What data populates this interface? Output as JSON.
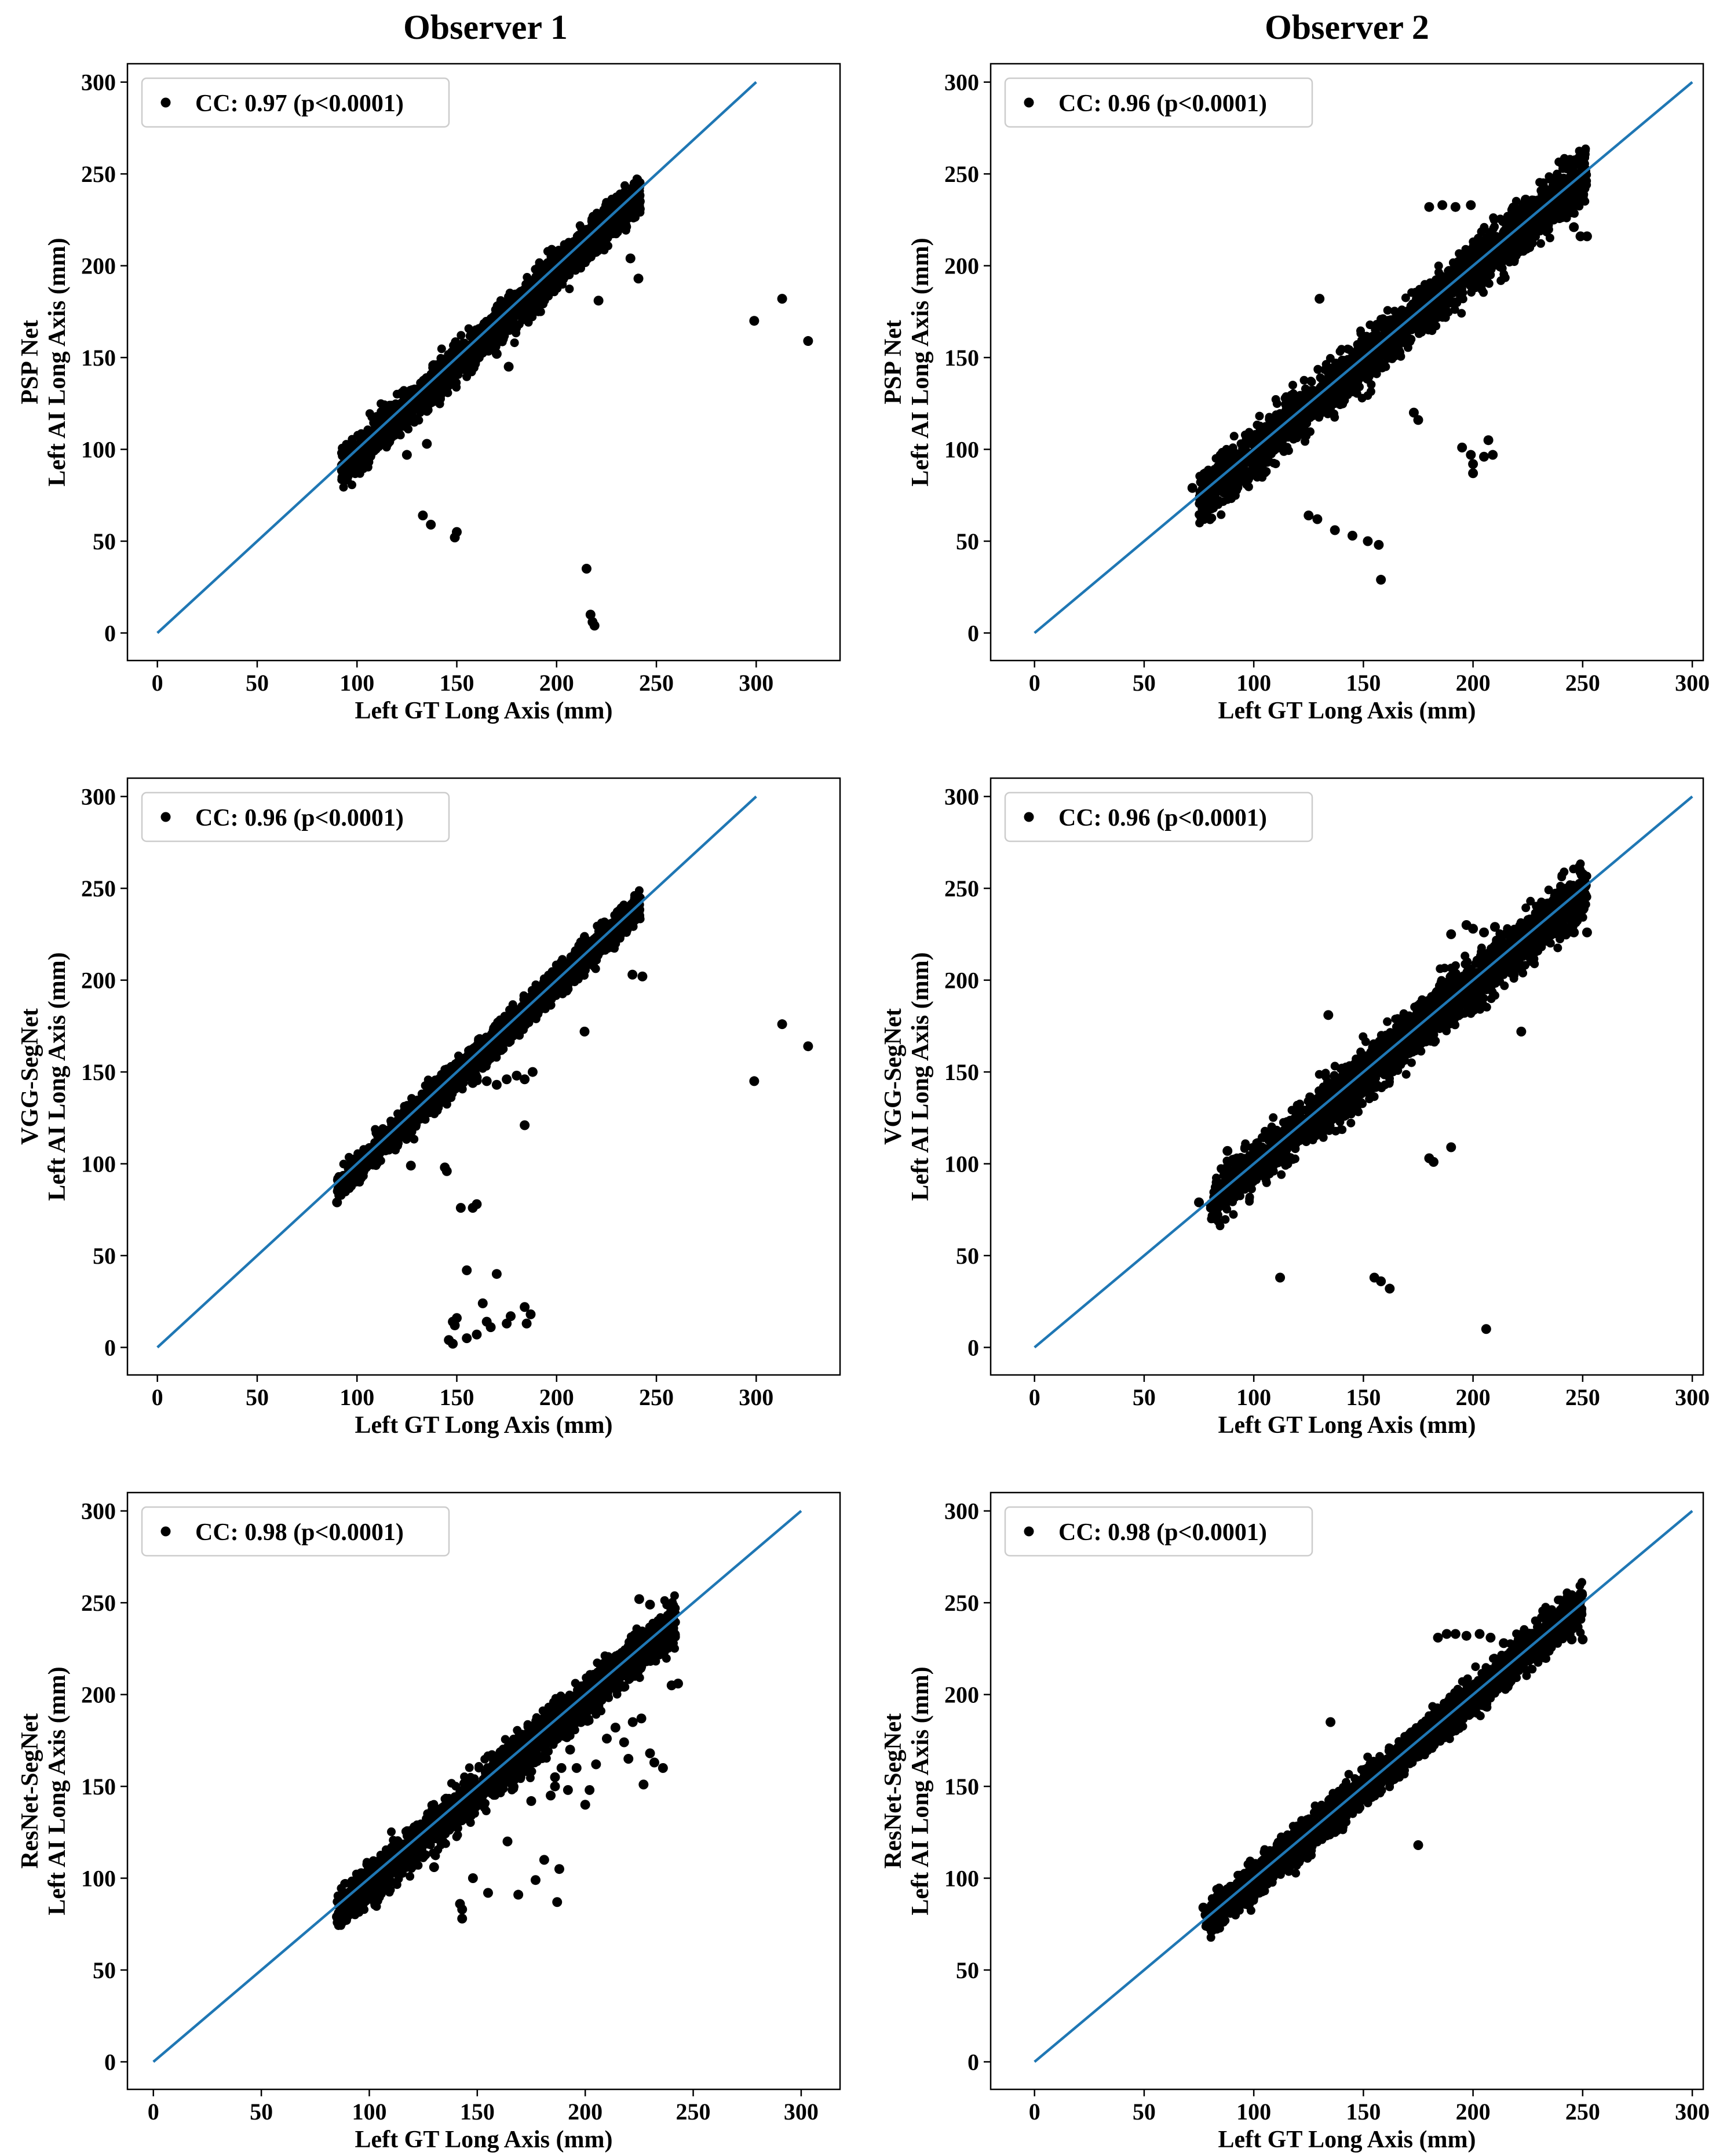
{
  "column_titles": [
    "Observer 1",
    "Observer 2"
  ],
  "colors": {
    "line": "#1f77b4",
    "points": "#000000",
    "axes": "#000000",
    "legend_border": "#cccccc"
  },
  "chart_data": [
    {
      "type": "scatter",
      "panel": "row1-observer1",
      "title": "Observer 1",
      "ylabel_top": "PSP Net",
      "ylabel": "Left AI Long Axis (mm)",
      "xlabel": "Left GT Long Axis (mm)",
      "legend": "CC: 0.97 (p<0.0001)",
      "xlim": [
        -15,
        342
      ],
      "ylim": [
        -15,
        310
      ],
      "xticks": [
        0,
        50,
        100,
        150,
        200,
        250,
        300
      ],
      "yticks": [
        0,
        50,
        100,
        150,
        200,
        250,
        300
      ],
      "identity_line": [
        [
          0,
          0
        ],
        [
          300,
          300
        ]
      ],
      "bulk": {
        "x_range": [
          92,
          242
        ],
        "spread": 9,
        "bias": -3
      },
      "outliers": [
        [
          133,
          64
        ],
        [
          137,
          59
        ],
        [
          149,
          52
        ],
        [
          150,
          55
        ],
        [
          215,
          35
        ],
        [
          217,
          10
        ],
        [
          218,
          6
        ],
        [
          219,
          4
        ],
        [
          237,
          204
        ],
        [
          241,
          193
        ],
        [
          221,
          181
        ],
        [
          299,
          170
        ],
        [
          313,
          182
        ],
        [
          326,
          159
        ],
        [
          135,
          103
        ],
        [
          125,
          97
        ],
        [
          120,
          110
        ],
        [
          170,
          152
        ],
        [
          176,
          145
        ]
      ]
    },
    {
      "type": "scatter",
      "panel": "row1-observer2",
      "title": "Observer 2",
      "ylabel_top": "PSP Net",
      "ylabel": "Left AI Long Axis (mm)",
      "xlabel": "Left GT Long Axis (mm)",
      "legend": "CC: 0.96 (p<0.0001)",
      "xlim": [
        -20,
        305
      ],
      "ylim": [
        -15,
        310
      ],
      "xticks": [
        0,
        50,
        100,
        150,
        200,
        250,
        300
      ],
      "yticks": [
        0,
        50,
        100,
        150,
        200,
        250,
        300
      ],
      "identity_line": [
        [
          0,
          0
        ],
        [
          300,
          300
        ]
      ],
      "bulk": {
        "x_range": [
          75,
          252
        ],
        "spread": 12,
        "bias": -2
      },
      "outliers": [
        [
          72,
          79
        ],
        [
          78,
          87
        ],
        [
          79,
          83
        ],
        [
          125,
          64
        ],
        [
          129,
          62
        ],
        [
          137,
          56
        ],
        [
          145,
          53
        ],
        [
          152,
          50
        ],
        [
          157,
          48
        ],
        [
          158,
          29
        ],
        [
          173,
          120
        ],
        [
          175,
          116
        ],
        [
          195,
          101
        ],
        [
          199,
          97
        ],
        [
          200,
          87
        ],
        [
          200,
          92
        ],
        [
          205,
          96
        ],
        [
          207,
          105
        ],
        [
          209,
          97
        ],
        [
          130,
          182
        ],
        [
          180,
          232
        ],
        [
          186,
          233
        ],
        [
          192,
          232
        ],
        [
          199,
          233
        ],
        [
          246,
          221
        ],
        [
          249,
          216
        ],
        [
          252,
          216
        ],
        [
          224,
          236
        ],
        [
          236,
          236
        ],
        [
          241,
          229
        ]
      ]
    },
    {
      "type": "scatter",
      "panel": "row2-observer1",
      "ylabel_top": "VGG-SegNet",
      "ylabel": "Left AI Long Axis (mm)",
      "xlabel": "Left GT Long Axis (mm)",
      "legend": "CC: 0.96 (p<0.0001)",
      "xlim": [
        -15,
        342
      ],
      "ylim": [
        -15,
        310
      ],
      "xticks": [
        0,
        50,
        100,
        150,
        200,
        250,
        300
      ],
      "yticks": [
        0,
        50,
        100,
        150,
        200,
        250,
        300
      ],
      "identity_line": [
        [
          0,
          0
        ],
        [
          300,
          300
        ]
      ],
      "bulk": {
        "x_range": [
          90,
          242
        ],
        "spread": 7,
        "bias": -2
      },
      "outliers": [
        [
          90,
          79
        ],
        [
          97,
          88
        ],
        [
          127,
          99
        ],
        [
          144,
          98
        ],
        [
          145,
          96
        ],
        [
          152,
          76
        ],
        [
          158,
          76
        ],
        [
          160,
          78
        ],
        [
          155,
          42
        ],
        [
          163,
          24
        ],
        [
          170,
          40
        ],
        [
          165,
          14
        ],
        [
          167,
          11
        ],
        [
          150,
          16
        ],
        [
          148,
          14
        ],
        [
          149,
          12
        ],
        [
          146,
          4
        ],
        [
          148,
          2
        ],
        [
          155,
          5
        ],
        [
          160,
          7
        ],
        [
          175,
          13
        ],
        [
          177,
          17
        ],
        [
          184,
          22
        ],
        [
          185,
          13
        ],
        [
          187,
          18
        ],
        [
          184,
          121
        ],
        [
          160,
          147
        ],
        [
          165,
          145
        ],
        [
          170,
          143
        ],
        [
          175,
          146
        ],
        [
          180,
          148
        ],
        [
          184,
          146
        ],
        [
          158,
          144
        ],
        [
          152,
          145
        ],
        [
          188,
          150
        ],
        [
          214,
          172
        ],
        [
          238,
          203
        ],
        [
          243,
          202
        ],
        [
          299,
          145
        ],
        [
          313,
          176
        ],
        [
          326,
          164
        ]
      ]
    },
    {
      "type": "scatter",
      "panel": "row2-observer2",
      "ylabel_top": "VGG-SegNet",
      "ylabel": "Left AI Long Axis (mm)",
      "xlabel": "Left GT Long Axis (mm)",
      "legend": "CC: 0.96 (p<0.0001)",
      "xlim": [
        -20,
        305
      ],
      "ylim": [
        -15,
        310
      ],
      "xticks": [
        0,
        50,
        100,
        150,
        200,
        250,
        300
      ],
      "yticks": [
        0,
        50,
        100,
        150,
        200,
        250,
        300
      ],
      "identity_line": [
        [
          0,
          0
        ],
        [
          300,
          300
        ]
      ],
      "bulk": {
        "x_range": [
          80,
          252
        ],
        "spread": 12,
        "bias": -2
      },
      "outliers": [
        [
          75,
          79
        ],
        [
          85,
          85
        ],
        [
          88,
          107
        ],
        [
          112,
          38
        ],
        [
          155,
          38
        ],
        [
          158,
          36
        ],
        [
          162,
          32
        ],
        [
          190,
          109
        ],
        [
          180,
          103
        ],
        [
          182,
          101
        ],
        [
          206,
          10
        ],
        [
          134,
          181
        ],
        [
          197,
          230
        ],
        [
          200,
          228
        ],
        [
          205,
          226
        ],
        [
          210,
          229
        ],
        [
          222,
          172
        ],
        [
          240,
          226
        ],
        [
          246,
          226
        ],
        [
          252,
          226
        ],
        [
          210,
          215
        ],
        [
          190,
          225
        ]
      ]
    },
    {
      "type": "scatter",
      "panel": "row3-observer1",
      "ylabel_top": "ResNet-SegNet",
      "ylabel": "Left AI Long Axis (mm)",
      "xlabel": "Left GT Long Axis (mm)",
      "legend": "CC: 0.98 (p<0.0001)",
      "xlim": [
        -12,
        318
      ],
      "ylim": [
        -15,
        310
      ],
      "xticks": [
        0,
        50,
        100,
        150,
        200,
        250,
        300
      ],
      "yticks": [
        0,
        50,
        100,
        150,
        200,
        250,
        300
      ],
      "identity_line": [
        [
          0,
          0
        ],
        [
          300,
          300
        ]
      ],
      "bulk": {
        "x_range": [
          85,
          242
        ],
        "spread": 10,
        "bias": -3
      },
      "outliers": [
        [
          85,
          79
        ],
        [
          90,
          84
        ],
        [
          95,
          88
        ],
        [
          130,
          106
        ],
        [
          142,
          86
        ],
        [
          143,
          83
        ],
        [
          143,
          78
        ],
        [
          148,
          100
        ],
        [
          155,
          92
        ],
        [
          164,
          120
        ],
        [
          169,
          91
        ],
        [
          177,
          99
        ],
        [
          181,
          110
        ],
        [
          187,
          87
        ],
        [
          188,
          105
        ],
        [
          184,
          145
        ],
        [
          186,
          150
        ],
        [
          186,
          155
        ],
        [
          189,
          160
        ],
        [
          192,
          148
        ],
        [
          196,
          160
        ],
        [
          193,
          170
        ],
        [
          200,
          140
        ],
        [
          202,
          148
        ],
        [
          205,
          162
        ],
        [
          210,
          176
        ],
        [
          214,
          182
        ],
        [
          218,
          174
        ],
        [
          222,
          185
        ],
        [
          226,
          187
        ],
        [
          220,
          165
        ],
        [
          230,
          168
        ],
        [
          227,
          151
        ],
        [
          232,
          163
        ],
        [
          236,
          160
        ],
        [
          240,
          205
        ],
        [
          243,
          206
        ],
        [
          225,
          252
        ],
        [
          230,
          249
        ],
        [
          175,
          142
        ],
        [
          170,
          155
        ],
        [
          195,
          190
        ],
        [
          198,
          185
        ]
      ]
    },
    {
      "type": "scatter",
      "panel": "row3-observer2",
      "ylabel_top": "ResNet-SegNet",
      "ylabel": "Left AI Long Axis (mm)",
      "xlabel": "Left GT Long Axis (mm)",
      "legend": "CC: 0.98 (p<0.0001)",
      "xlim": [
        -20,
        305
      ],
      "ylim": [
        -15,
        310
      ],
      "xticks": [
        0,
        50,
        100,
        150,
        200,
        250,
        300
      ],
      "yticks": [
        0,
        50,
        100,
        150,
        200,
        250,
        300
      ],
      "identity_line": [
        [
          0,
          0
        ],
        [
          300,
          300
        ]
      ],
      "bulk": {
        "x_range": [
          78,
          250
        ],
        "spread": 9,
        "bias": -1
      },
      "outliers": [
        [
          77,
          84
        ],
        [
          78,
          80
        ],
        [
          88,
          94
        ],
        [
          135,
          185
        ],
        [
          175,
          118
        ],
        [
          184,
          231
        ],
        [
          188,
          233
        ],
        [
          192,
          233
        ],
        [
          197,
          232
        ],
        [
          203,
          233
        ],
        [
          208,
          231
        ],
        [
          214,
          228
        ],
        [
          240,
          231
        ],
        [
          245,
          230
        ],
        [
          250,
          230
        ],
        [
          110,
          105
        ],
        [
          115,
          112
        ]
      ]
    }
  ]
}
